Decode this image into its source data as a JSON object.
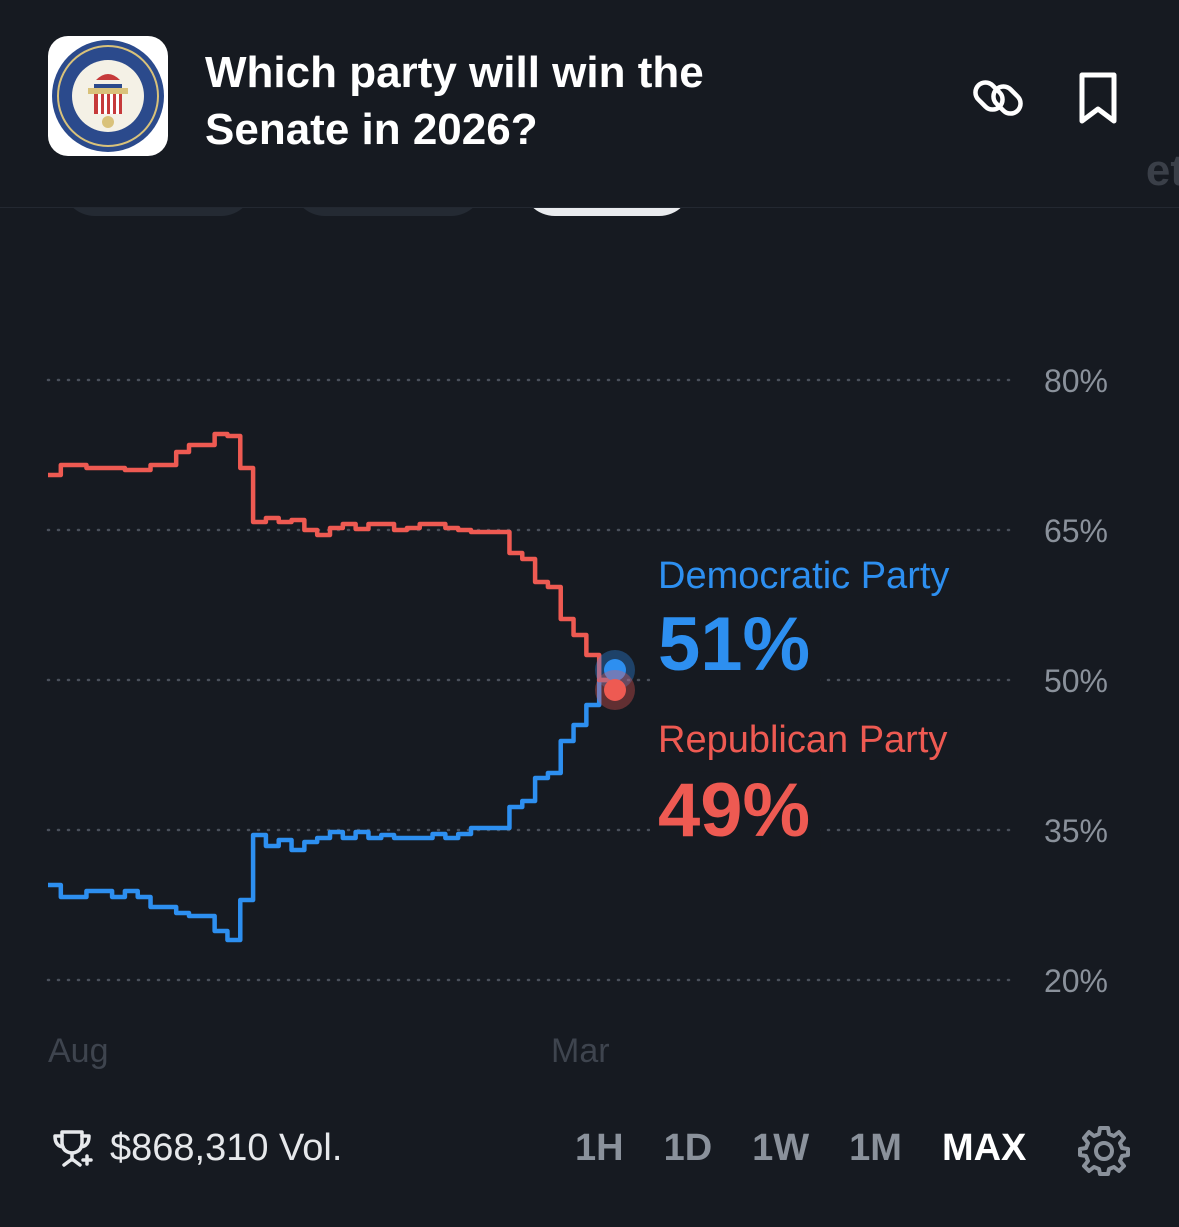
{
  "header": {
    "title": "Which party will win the Senate in 2026?",
    "logo_icon": "us-senate-seal-icon",
    "link_icon": "link-icon",
    "bookmark_icon": "bookmark-icon"
  },
  "chart_labels": {
    "dem_name": "Democratic Party",
    "dem_value": "51%",
    "rep_name": "Republican Party",
    "rep_value": "49%"
  },
  "footer": {
    "volume": "$868,310 Vol.",
    "trophy_icon": "trophy-icon",
    "ranges": [
      "1H",
      "1D",
      "1W",
      "1M",
      "MAX"
    ],
    "selected_range": "MAX",
    "settings_icon": "gear-icon"
  },
  "colors": {
    "democratic": "#2d8ff0",
    "republican": "#ee5a52",
    "background": "#161a21"
  },
  "chart_data": {
    "type": "line",
    "x_tick_labels": [
      "Aug",
      "Mar"
    ],
    "y_tick_labels": [
      "80%",
      "65%",
      "50%",
      "35%",
      "20%"
    ],
    "ylim": [
      20,
      80
    ],
    "y_ticks": [
      80,
      65,
      50,
      35,
      20
    ],
    "grid": true,
    "series": [
      {
        "name": "Democratic Party",
        "color": "#2d8ff0",
        "values": [
          29.5,
          28.3,
          28.3,
          28.9,
          28.9,
          28.3,
          28.9,
          28.3,
          27.3,
          27.3,
          26.7,
          26.4,
          26.4,
          24.9,
          24.0,
          28.0,
          34.5,
          33.4,
          34.0,
          33.0,
          33.8,
          34.2,
          34.8,
          34.2,
          34.8,
          34.2,
          34.5,
          34.2,
          34.2,
          34.2,
          34.6,
          34.2,
          34.6,
          35.2,
          35.2,
          35.2,
          37.3,
          37.9,
          40.2,
          40.7,
          43.9,
          45.5,
          47.5,
          50.0,
          51.0
        ]
      },
      {
        "name": "Republican Party",
        "color": "#ee5a52",
        "values": [
          70.5,
          71.5,
          71.5,
          71.2,
          71.2,
          71.2,
          71.0,
          71.0,
          71.5,
          71.5,
          72.8,
          73.5,
          73.5,
          74.6,
          74.4,
          71.2,
          65.8,
          66.2,
          65.8,
          66.0,
          65.0,
          64.5,
          65.2,
          65.6,
          65.1,
          65.6,
          65.6,
          65.0,
          65.2,
          65.6,
          65.6,
          65.2,
          65.0,
          64.8,
          64.8,
          64.8,
          62.7,
          62.1,
          59.8,
          59.3,
          56.1,
          54.5,
          52.5,
          50.0,
          49.0
        ]
      }
    ]
  }
}
